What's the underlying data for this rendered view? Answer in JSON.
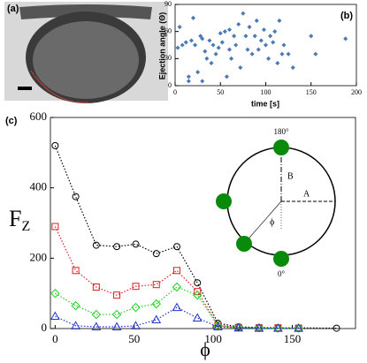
{
  "panels": {
    "a": "(a)",
    "b": "(b)",
    "c": "(c)"
  },
  "chart_data": [
    {
      "type": "scatter",
      "xlabel": "time [s]",
      "ylabel": "Ejection angle (Θ)",
      "color": "#4a7ab8",
      "xlim": [
        0,
        200
      ],
      "ylim": [
        0,
        90
      ],
      "xticks": [
        0,
        50,
        100,
        150,
        200
      ],
      "yticks": [
        0,
        30,
        60,
        90
      ],
      "x": [
        3,
        5,
        8,
        12,
        15,
        18,
        20,
        22,
        25,
        28,
        30,
        33,
        35,
        38,
        40,
        42,
        45,
        48,
        50,
        52,
        55,
        57,
        60,
        62,
        65,
        67,
        70,
        72,
        75,
        78,
        80,
        82,
        85,
        88,
        90,
        92,
        95,
        98,
        100,
        103,
        105,
        108,
        110,
        113,
        115,
        118,
        120,
        125,
        130,
        150,
        155,
        188,
        15,
        30,
        60
      ],
      "values": [
        42,
        65,
        45,
        48,
        10,
        50,
        75,
        45,
        15,
        55,
        52,
        38,
        30,
        50,
        25,
        45,
        35,
        42,
        58,
        48,
        60,
        10,
        62,
        30,
        55,
        45,
        68,
        20,
        80,
        55,
        40,
        65,
        35,
        55,
        72,
        40,
        50,
        62,
        45,
        30,
        55,
        48,
        60,
        25,
        72,
        35,
        45,
        35,
        20,
        55,
        35,
        52,
        5,
        5,
        40
      ]
    },
    {
      "type": "line",
      "xlabel": "ϕ",
      "ylabel": {
        "main": "F",
        "sub": "Z"
      },
      "xlim": [
        -3,
        190
      ],
      "ylim": [
        0,
        600
      ],
      "xticks": [
        0,
        50,
        100,
        150
      ],
      "yticks": [
        0,
        200,
        400,
        600
      ],
      "x": [
        0,
        13,
        26,
        39,
        51,
        64,
        77,
        90,
        103,
        116,
        129,
        141,
        154,
        178
      ],
      "series": [
        {
          "name": "black",
          "color": "#000000",
          "marker": "circle",
          "values": [
            520,
            375,
            237,
            233,
            240,
            213,
            233,
            130,
            15,
            5,
            3,
            2,
            2,
            1
          ]
        },
        {
          "name": "red",
          "color": "#e02020",
          "marker": "square",
          "values": [
            290,
            165,
            118,
            95,
            120,
            125,
            165,
            105,
            10,
            3,
            2,
            2,
            1,
            null
          ]
        },
        {
          "name": "green",
          "color": "#22cc22",
          "marker": "diamond",
          "values": [
            100,
            65,
            40,
            40,
            60,
            70,
            118,
            95,
            8,
            3,
            2,
            1,
            1,
            null
          ]
        },
        {
          "name": "blue",
          "color": "#2233cc",
          "marker": "triangle",
          "values": [
            35,
            8,
            5,
            5,
            8,
            25,
            60,
            30,
            5,
            2,
            1,
            1,
            1,
            null
          ]
        }
      ]
    }
  ],
  "inset": {
    "top": "180°",
    "b": "B",
    "a": "A",
    "phi": "ϕ",
    "bottom": "0°"
  }
}
